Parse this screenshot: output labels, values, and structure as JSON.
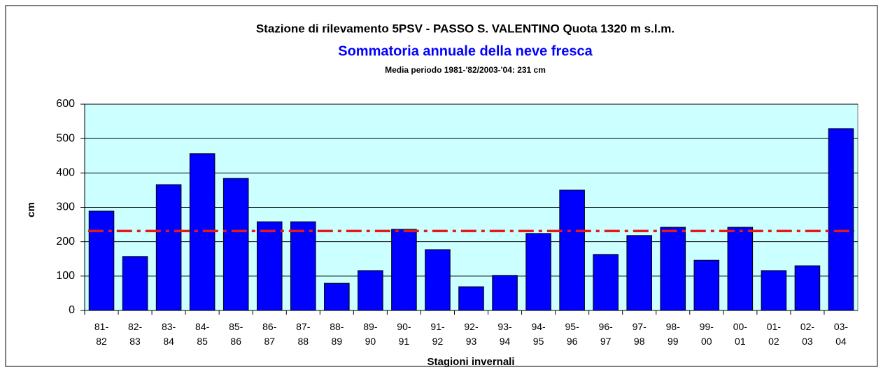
{
  "chart_data": {
    "type": "bar",
    "title": "Stazione di rilevamento 5PSV - PASSO S. VALENTINO  Quota 1320 m s.l.m.",
    "subtitle": "Sommatoria annuale della neve fresca",
    "note": "Media periodo 1981-'82/2003-'04: 231 cm",
    "x_label": "Stagioni invernali",
    "y_label": "cm",
    "categories": [
      "81-\n82",
      "82-\n83",
      "83-\n84",
      "84-\n85",
      "85-\n86",
      "86-\n87",
      "87-\n88",
      "88-\n89",
      "89-\n90",
      "90-\n91",
      "91-\n92",
      "92-\n93",
      "93-\n94",
      "94-\n95",
      "95-\n96",
      "96-\n97",
      "97-\n98",
      "98-\n99",
      "99-\n00",
      "00-\n01",
      "01-\n02",
      "02-\n03",
      "03-\n04"
    ],
    "values": [
      289,
      157,
      366,
      456,
      384,
      258,
      258,
      79,
      116,
      236,
      177,
      69,
      102,
      224,
      350,
      163,
      218,
      242,
      146,
      242,
      116,
      130,
      529
    ],
    "color": "#0000ff",
    "reference_line": {
      "value": 231,
      "color": "#e31a1c"
    },
    "ylim": [
      0,
      600
    ],
    "yticks": [
      0,
      100,
      200,
      300,
      400,
      500,
      600
    ],
    "grid": true,
    "plot_background": "#ccffff"
  }
}
